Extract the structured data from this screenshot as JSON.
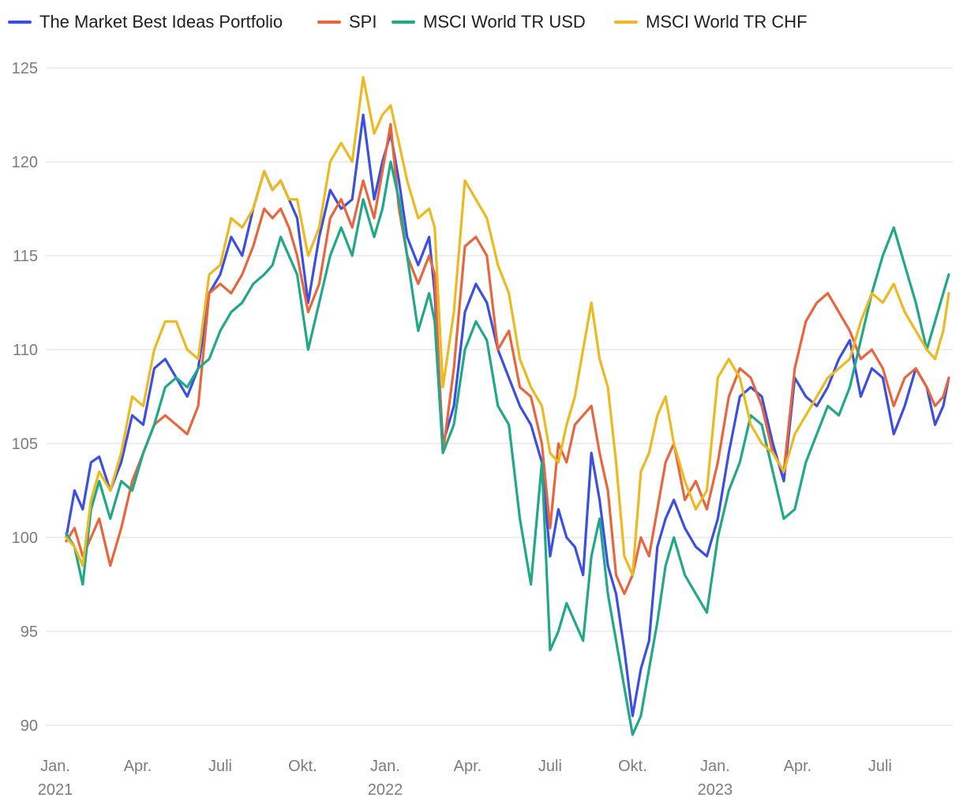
{
  "chart_data": {
    "type": "line",
    "title": "",
    "xlabel": "",
    "ylabel": "",
    "ylim": [
      89,
      126
    ],
    "grid": true,
    "legend_position": "top",
    "y_ticks": [
      90,
      95,
      100,
      105,
      110,
      115,
      120,
      125
    ],
    "x_ticks": [
      {
        "label": "Jan.",
        "year": "2021",
        "t": 0
      },
      {
        "label": "Apr.",
        "year": "",
        "t": 3
      },
      {
        "label": "Juli",
        "year": "",
        "t": 6
      },
      {
        "label": "Okt.",
        "year": "",
        "t": 9
      },
      {
        "label": "Jan.",
        "year": "2022",
        "t": 12
      },
      {
        "label": "Apr.",
        "year": "",
        "t": 15
      },
      {
        "label": "Juli",
        "year": "",
        "t": 18
      },
      {
        "label": "Okt.",
        "year": "",
        "t": 21
      },
      {
        "label": "Jan.",
        "year": "2023",
        "t": 24
      },
      {
        "label": "Apr.",
        "year": "",
        "t": 27
      },
      {
        "label": "Juli",
        "year": "",
        "t": 30
      }
    ],
    "x_range": [
      0,
      32.6
    ],
    "series": [
      {
        "name": "The Market Best Ideas Portfolio",
        "color": "#3b4fe0",
        "x": [
          0.4,
          0.7,
          1.0,
          1.3,
          1.6,
          2.0,
          2.4,
          2.8,
          3.2,
          3.6,
          4.0,
          4.4,
          4.8,
          5.2,
          5.6,
          6.0,
          6.4,
          6.8,
          7.2,
          7.6,
          7.9,
          8.2,
          8.5,
          8.8,
          9.2,
          9.6,
          10.0,
          10.4,
          10.8,
          11.2,
          11.6,
          11.9,
          12.2,
          12.5,
          12.8,
          13.2,
          13.6,
          13.8,
          14.1,
          14.5,
          14.9,
          15.3,
          15.7,
          16.1,
          16.5,
          16.9,
          17.3,
          17.7,
          18.0,
          18.3,
          18.6,
          18.9,
          19.2,
          19.5,
          19.8,
          20.1,
          20.4,
          20.7,
          21.0,
          21.3,
          21.6,
          21.9,
          22.2,
          22.5,
          22.9,
          23.3,
          23.7,
          24.1,
          24.5,
          24.9,
          25.3,
          25.7,
          26.1,
          26.5,
          26.9,
          27.3,
          27.7,
          28.1,
          28.5,
          28.9,
          29.3,
          29.7,
          30.1,
          30.5,
          30.9,
          31.3,
          31.7,
          32.0,
          32.3,
          32.5
        ],
        "values": [
          100.0,
          102.5,
          101.5,
          104.0,
          104.3,
          102.5,
          104.0,
          106.5,
          106.0,
          109.0,
          109.5,
          108.5,
          107.5,
          109.0,
          113.0,
          114.0,
          116.0,
          115.0,
          117.5,
          119.5,
          118.5,
          119.0,
          118.0,
          117.0,
          112.5,
          116.0,
          118.5,
          117.5,
          118.0,
          122.5,
          118.0,
          120.0,
          121.5,
          119.0,
          116.0,
          114.5,
          116.0,
          113.0,
          105.0,
          107.0,
          112.0,
          113.5,
          112.5,
          110.0,
          108.5,
          107.0,
          106.0,
          104.0,
          99.0,
          101.5,
          100.0,
          99.5,
          98.0,
          104.5,
          102.0,
          98.5,
          97.0,
          94.0,
          90.5,
          93.0,
          94.5,
          99.5,
          101.0,
          102.0,
          100.5,
          99.5,
          99.0,
          101.0,
          104.5,
          107.5,
          108.0,
          107.5,
          105.0,
          103.0,
          108.5,
          107.5,
          107.0,
          108.0,
          109.5,
          110.5,
          107.5,
          109.0,
          108.5,
          105.5,
          107.0,
          109.0,
          108.0,
          106.0,
          107.0,
          108.5
        ]
      },
      {
        "name": "SPI",
        "color": "#e8663d",
        "x": [
          0.4,
          0.7,
          1.0,
          1.3,
          1.6,
          2.0,
          2.4,
          2.8,
          3.2,
          3.6,
          4.0,
          4.4,
          4.8,
          5.2,
          5.6,
          6.0,
          6.4,
          6.8,
          7.2,
          7.6,
          7.9,
          8.2,
          8.5,
          8.8,
          9.2,
          9.6,
          10.0,
          10.4,
          10.8,
          11.2,
          11.6,
          11.9,
          12.2,
          12.5,
          12.8,
          13.2,
          13.6,
          13.8,
          14.1,
          14.5,
          14.9,
          15.3,
          15.7,
          16.1,
          16.5,
          16.9,
          17.3,
          17.7,
          18.0,
          18.3,
          18.6,
          18.9,
          19.2,
          19.5,
          19.8,
          20.1,
          20.4,
          20.7,
          21.0,
          21.3,
          21.6,
          21.9,
          22.2,
          22.5,
          22.9,
          23.3,
          23.7,
          24.1,
          24.5,
          24.9,
          25.3,
          25.7,
          26.1,
          26.5,
          26.9,
          27.3,
          27.7,
          28.1,
          28.5,
          28.9,
          29.3,
          29.7,
          30.1,
          30.5,
          30.9,
          31.3,
          31.7,
          32.0,
          32.3,
          32.5
        ],
        "values": [
          99.8,
          100.5,
          99.0,
          100.0,
          101.0,
          98.5,
          100.5,
          103.0,
          104.5,
          106.0,
          106.5,
          106.0,
          105.5,
          107.0,
          113.0,
          113.5,
          113.0,
          114.0,
          115.5,
          117.5,
          117.0,
          117.5,
          116.5,
          115.0,
          112.0,
          113.5,
          117.0,
          118.0,
          116.5,
          119.0,
          117.0,
          119.5,
          122.0,
          117.5,
          115.0,
          113.5,
          115.0,
          114.0,
          104.5,
          109.0,
          115.5,
          116.0,
          115.0,
          110.0,
          111.0,
          108.0,
          107.5,
          105.0,
          100.5,
          105.0,
          104.0,
          106.0,
          106.5,
          107.0,
          104.5,
          102.5,
          98.0,
          97.0,
          98.0,
          100.0,
          99.0,
          101.5,
          104.0,
          105.0,
          102.0,
          103.0,
          101.5,
          104.0,
          107.5,
          109.0,
          108.5,
          107.0,
          104.5,
          103.5,
          109.0,
          111.5,
          112.5,
          113.0,
          112.0,
          111.0,
          109.5,
          110.0,
          109.0,
          107.0,
          108.5,
          109.0,
          108.0,
          107.0,
          107.5,
          108.5
        ]
      },
      {
        "name": "MSCI World TR USD",
        "color": "#21a889",
        "x": [
          0.4,
          0.7,
          1.0,
          1.3,
          1.6,
          2.0,
          2.4,
          2.8,
          3.2,
          3.6,
          4.0,
          4.4,
          4.8,
          5.2,
          5.6,
          6.0,
          6.4,
          6.8,
          7.2,
          7.6,
          7.9,
          8.2,
          8.5,
          8.8,
          9.2,
          9.6,
          10.0,
          10.4,
          10.8,
          11.2,
          11.6,
          11.9,
          12.2,
          12.5,
          12.8,
          13.2,
          13.6,
          13.8,
          14.1,
          14.5,
          14.9,
          15.3,
          15.7,
          16.1,
          16.5,
          16.9,
          17.3,
          17.7,
          18.0,
          18.3,
          18.6,
          18.9,
          19.2,
          19.5,
          19.8,
          20.1,
          20.4,
          20.7,
          21.0,
          21.3,
          21.6,
          21.9,
          22.2,
          22.5,
          22.9,
          23.3,
          23.7,
          24.1,
          24.5,
          24.9,
          25.3,
          25.7,
          26.1,
          26.5,
          26.9,
          27.3,
          27.7,
          28.1,
          28.5,
          28.9,
          29.3,
          29.7,
          30.1,
          30.5,
          30.9,
          31.3,
          31.7,
          32.0,
          32.3,
          32.5
        ],
        "values": [
          100.2,
          99.5,
          97.5,
          101.5,
          103.0,
          101.0,
          103.0,
          102.5,
          104.5,
          106.0,
          108.0,
          108.5,
          108.0,
          109.0,
          109.5,
          111.0,
          112.0,
          112.5,
          113.5,
          114.0,
          114.5,
          116.0,
          115.0,
          114.0,
          110.0,
          112.5,
          115.0,
          116.5,
          115.0,
          118.0,
          116.0,
          117.5,
          120.0,
          118.0,
          115.0,
          111.0,
          113.0,
          111.5,
          104.5,
          106.0,
          110.0,
          111.5,
          110.5,
          107.0,
          106.0,
          101.0,
          97.5,
          104.0,
          94.0,
          95.0,
          96.5,
          95.5,
          94.5,
          99.0,
          101.0,
          97.0,
          94.5,
          92.0,
          89.5,
          90.5,
          93.0,
          95.5,
          98.5,
          100.0,
          98.0,
          97.0,
          96.0,
          100.0,
          102.5,
          104.0,
          106.5,
          106.0,
          103.5,
          101.0,
          101.5,
          104.0,
          105.5,
          107.0,
          106.5,
          108.0,
          110.5,
          113.0,
          115.0,
          116.5,
          114.5,
          112.5,
          110.0,
          111.5,
          113.0,
          114.0
        ]
      },
      {
        "name": "MSCI World TR CHF",
        "color": "#ecb921",
        "x": [
          0.4,
          0.7,
          1.0,
          1.3,
          1.6,
          2.0,
          2.4,
          2.8,
          3.2,
          3.6,
          4.0,
          4.4,
          4.8,
          5.2,
          5.6,
          6.0,
          6.4,
          6.8,
          7.2,
          7.6,
          7.9,
          8.2,
          8.5,
          8.8,
          9.2,
          9.6,
          10.0,
          10.4,
          10.8,
          11.2,
          11.6,
          11.9,
          12.2,
          12.5,
          12.8,
          13.2,
          13.6,
          13.8,
          14.1,
          14.5,
          14.9,
          15.3,
          15.7,
          16.1,
          16.5,
          16.9,
          17.3,
          17.7,
          18.0,
          18.3,
          18.6,
          18.9,
          19.2,
          19.5,
          19.8,
          20.1,
          20.4,
          20.7,
          21.0,
          21.3,
          21.6,
          21.9,
          22.2,
          22.5,
          22.9,
          23.3,
          23.7,
          24.1,
          24.5,
          24.9,
          25.3,
          25.7,
          26.1,
          26.5,
          26.9,
          27.3,
          27.7,
          28.1,
          28.5,
          28.9,
          29.3,
          29.7,
          30.1,
          30.5,
          30.9,
          31.3,
          31.7,
          32.0,
          32.3,
          32.5
        ],
        "values": [
          100.0,
          99.5,
          98.5,
          102.0,
          103.5,
          102.5,
          104.5,
          107.5,
          107.0,
          110.0,
          111.5,
          111.5,
          110.0,
          109.5,
          114.0,
          114.5,
          117.0,
          116.5,
          117.5,
          119.5,
          118.5,
          119.0,
          118.0,
          118.0,
          115.0,
          116.5,
          120.0,
          121.0,
          120.0,
          124.5,
          121.5,
          122.5,
          123.0,
          121.0,
          119.0,
          117.0,
          117.5,
          116.5,
          108.0,
          112.0,
          119.0,
          118.0,
          117.0,
          114.5,
          113.0,
          109.5,
          108.0,
          107.0,
          104.5,
          104.0,
          106.0,
          107.5,
          110.0,
          112.5,
          109.5,
          108.0,
          104.0,
          99.0,
          98.0,
          103.5,
          104.5,
          106.5,
          107.5,
          105.0,
          103.0,
          101.5,
          102.5,
          108.5,
          109.5,
          108.5,
          106.0,
          105.0,
          104.5,
          103.5,
          105.5,
          106.5,
          107.5,
          108.5,
          109.0,
          109.5,
          111.5,
          113.0,
          112.5,
          113.5,
          112.0,
          111.0,
          110.0,
          109.5,
          111.0,
          113.0
        ]
      }
    ]
  }
}
